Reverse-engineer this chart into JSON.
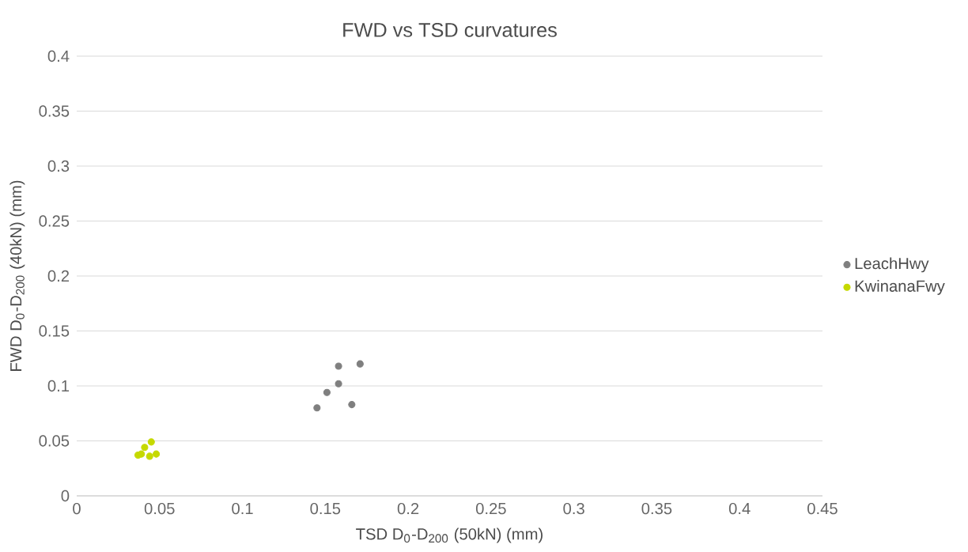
{
  "chart_data": {
    "type": "scatter",
    "title": "FWD vs TSD curvatures",
    "xlabel": "TSD D$_{0}$-D$_{200}$ (50kN) (mm)",
    "ylabel": "FWD D$_{0}$-D$_{200}$ (40kN) (mm)",
    "series": [
      {
        "name": "LeachHwy",
        "color": "#7f7f7f",
        "x": [
          0.145,
          0.151,
          0.158,
          0.158,
          0.166,
          0.171
        ],
        "values": [
          0.08,
          0.094,
          0.102,
          0.118,
          0.083,
          0.12
        ]
      },
      {
        "name": "KwinanaFwy",
        "color": "#c5d900",
        "x": [
          0.045,
          0.041,
          0.037,
          0.039,
          0.044,
          0.048
        ],
        "values": [
          0.049,
          0.044,
          0.037,
          0.038,
          0.036,
          0.038
        ]
      }
    ],
    "xlim": [
      0,
      0.45
    ],
    "ylim": [
      0,
      0.4
    ],
    "xticks": [
      0,
      0.05,
      0.1,
      0.15,
      0.2,
      0.25,
      0.3,
      0.35,
      0.4,
      0.45
    ],
    "yticks": [
      0,
      0.05,
      0.1,
      0.15,
      0.2,
      0.25,
      0.3,
      0.35,
      0.4
    ],
    "grid": "y",
    "legend": "right",
    "marker": "circle"
  }
}
